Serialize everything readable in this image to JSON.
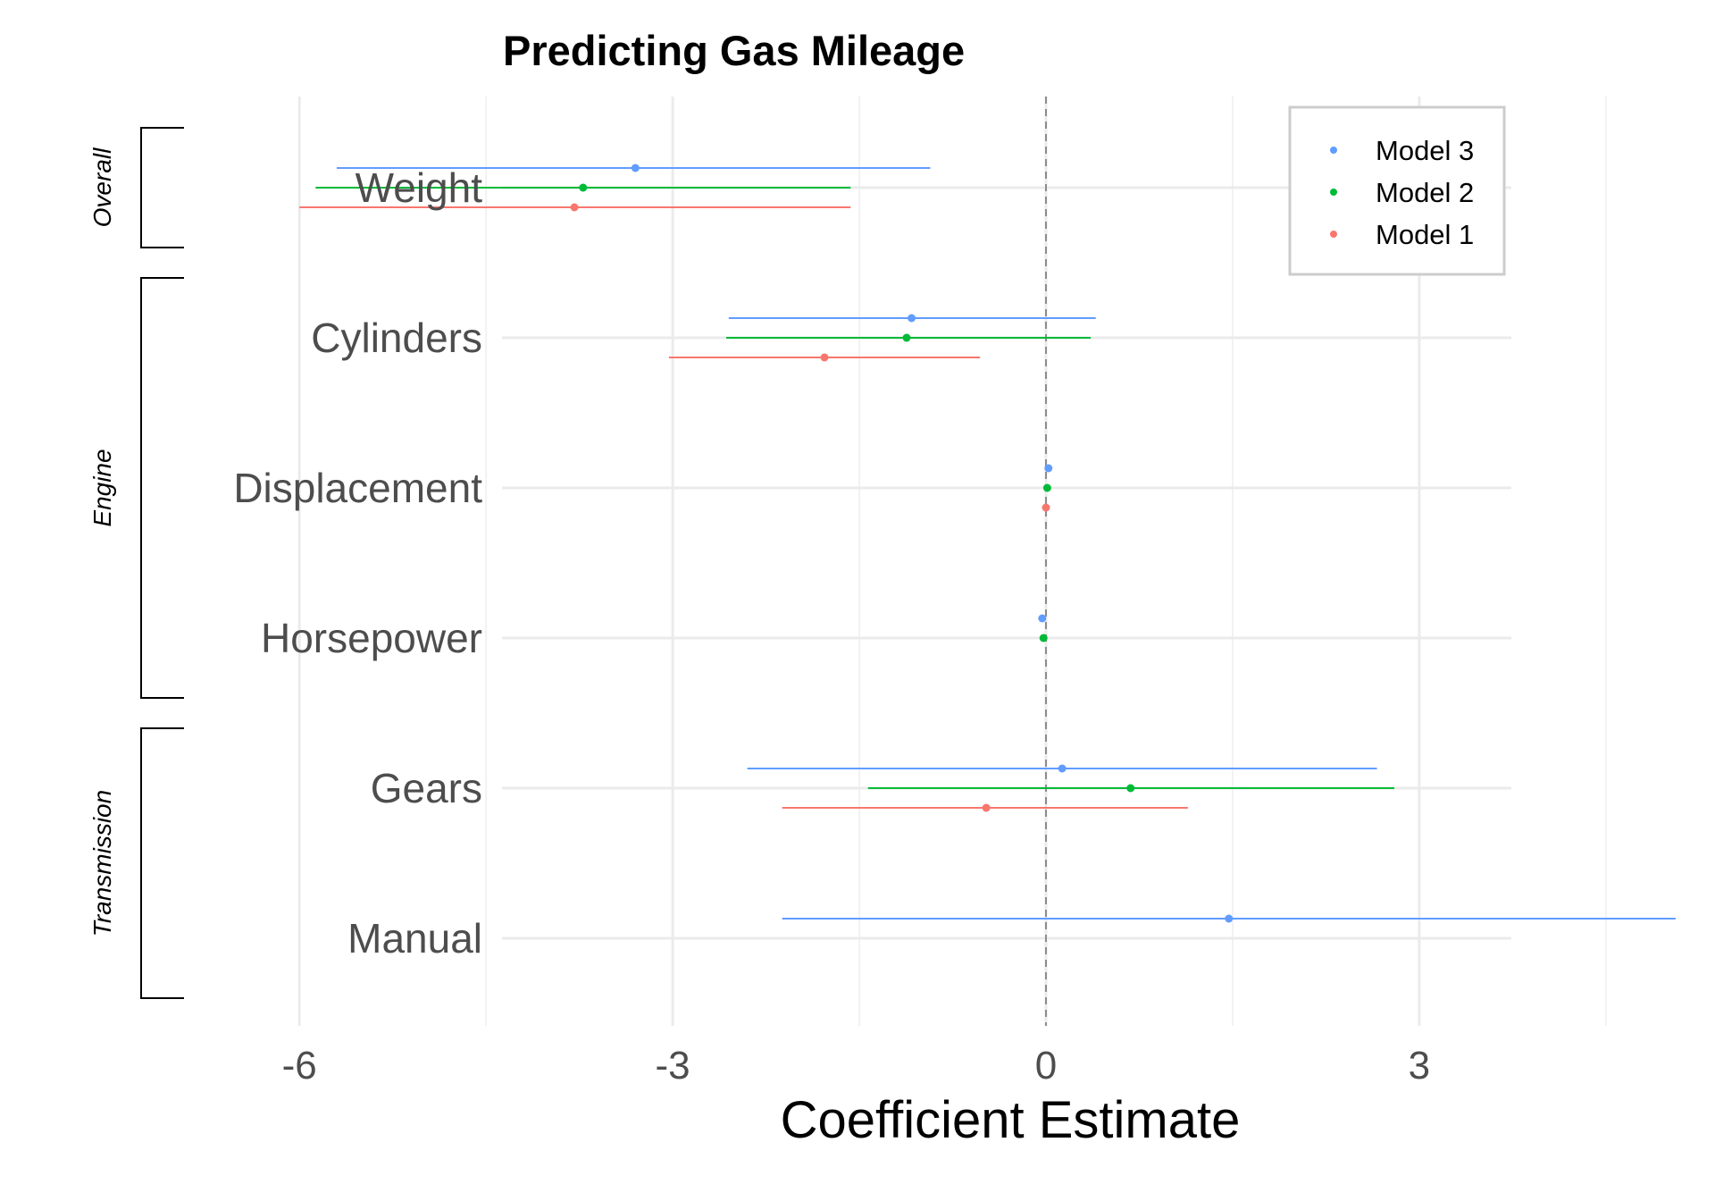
{
  "chart_data": {
    "type": "coefficient-plot",
    "title": "Predicting Gas Mileage",
    "xlabel": "Coefficient Estimate",
    "ylabel": "",
    "xlim": [
      -6.6,
      5.6
    ],
    "x_ticks": [
      -6,
      -3,
      0,
      3
    ],
    "x_tick_labels": [
      "-6",
      "-3",
      "0",
      "3"
    ],
    "zero_line": 0,
    "grid": true,
    "legend_position": "top-right",
    "categories": [
      "Weight",
      "Cylinders",
      "Displacement",
      "Horsepower",
      "Gears",
      "Manual"
    ],
    "groups": [
      {
        "label": "Overall",
        "categories": [
          "Weight"
        ]
      },
      {
        "label": "Engine",
        "categories": [
          "Cylinders",
          "Displacement",
          "Horsepower"
        ]
      },
      {
        "label": "Transmission",
        "categories": [
          "Gears",
          "Manual"
        ]
      }
    ],
    "series": [
      {
        "name": "Model 3",
        "color": "#619CFF",
        "points": [
          {
            "category": "Weight",
            "estimate": -3.3,
            "low": -5.7,
            "high": -0.93
          },
          {
            "category": "Cylinders",
            "estimate": -1.08,
            "low": -2.55,
            "high": 0.4
          },
          {
            "category": "Displacement",
            "estimate": 0.02,
            "low": 0.0,
            "high": 0.04
          },
          {
            "category": "Horsepower",
            "estimate": -0.03,
            "low": -0.05,
            "high": -0.01
          },
          {
            "category": "Gears",
            "estimate": 0.13,
            "low": -2.4,
            "high": 2.66
          },
          {
            "category": "Manual",
            "estimate": 1.47,
            "low": -2.12,
            "high": 5.06
          }
        ]
      },
      {
        "name": "Model 2",
        "color": "#00BA38",
        "points": [
          {
            "category": "Weight",
            "estimate": -3.72,
            "low": -5.87,
            "high": -1.57
          },
          {
            "category": "Cylinders",
            "estimate": -1.12,
            "low": -2.57,
            "high": 0.36
          },
          {
            "category": "Displacement",
            "estimate": 0.01,
            "low": -0.01,
            "high": 0.03
          },
          {
            "category": "Horsepower",
            "estimate": -0.02,
            "low": -0.04,
            "high": 0.0
          },
          {
            "category": "Gears",
            "estimate": 0.68,
            "low": -1.43,
            "high": 2.8
          }
        ]
      },
      {
        "name": "Model 1",
        "color": "#F8766D",
        "points": [
          {
            "category": "Weight",
            "estimate": -3.79,
            "low": -6.0,
            "high": -1.57
          },
          {
            "category": "Cylinders",
            "estimate": -1.78,
            "low": -3.03,
            "high": -0.53
          },
          {
            "category": "Displacement",
            "estimate": 0.0,
            "low": -0.02,
            "high": 0.02
          },
          {
            "category": "Gears",
            "estimate": -0.48,
            "low": -2.12,
            "high": 1.14
          }
        ]
      }
    ],
    "legend_order": [
      "Model 3",
      "Model 2",
      "Model 1"
    ]
  }
}
